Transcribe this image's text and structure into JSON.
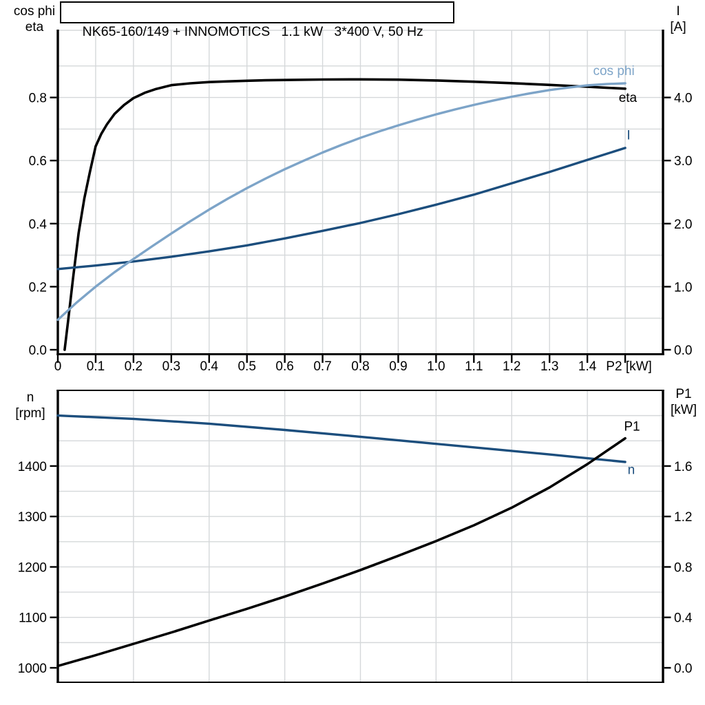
{
  "title_box": {
    "text": "NK65-160/149 + INNOMOTICS   1.1 kW   3*400 V, 50 Hz"
  },
  "axis_corner_labels": {
    "top_chart_left": [
      "cos phi",
      "eta"
    ],
    "top_chart_right": [
      "I",
      "[A]"
    ],
    "bottom_chart_left": [
      "n",
      "[rpm]"
    ],
    "bottom_chart_right": [
      "P1",
      "[kW]"
    ]
  },
  "colors": {
    "black": "#000000",
    "light_blue": "#7da4c8",
    "dark_blue": "#1c4e7d",
    "grid": "#d5d8da",
    "axis": "#000000",
    "background": "#ffffff"
  },
  "chart_data": [
    {
      "type": "line",
      "title": "NK65-160/149 + INNOMOTICS   1.1 kW   3*400 V, 50 Hz",
      "x_axis": {
        "label": "P2 [kW]",
        "min": 0,
        "max": 1.6,
        "grid_step": 0.1,
        "unit_label": "P2 [kW]",
        "unit_at": 1.51,
        "ticks": [
          [
            0,
            "0"
          ],
          [
            0.1,
            "0.1"
          ],
          [
            0.2,
            "0.2"
          ],
          [
            0.3,
            "0.3"
          ],
          [
            0.4,
            "0.4"
          ],
          [
            0.5,
            "0.5"
          ],
          [
            0.6,
            "0.6"
          ],
          [
            0.7,
            "0.7"
          ],
          [
            0.8,
            "0.8"
          ],
          [
            0.9,
            "0.9"
          ],
          [
            1.0,
            "1.0"
          ],
          [
            1.1,
            "1.1"
          ],
          [
            1.2,
            "1.2"
          ],
          [
            1.3,
            "1.3"
          ],
          [
            1.4,
            "1.4"
          ],
          [
            1.5,
            ""
          ]
        ],
        "grid": [
          0.1,
          0.2,
          0.3,
          0.4,
          0.5,
          0.6,
          0.7,
          0.8,
          0.9,
          1.0,
          1.1,
          1.2,
          1.3,
          1.4,
          1.5
        ]
      },
      "left_axis": {
        "label": "cos phi / eta",
        "min": 0,
        "max": 1.0,
        "ticks": [
          [
            0,
            "0.0"
          ],
          [
            0.2,
            "0.2"
          ],
          [
            0.4,
            "0.4"
          ],
          [
            0.6,
            "0.6"
          ],
          [
            0.8,
            "0.8"
          ]
        ],
        "grid": [
          0.1,
          0.2,
          0.3,
          0.4,
          0.5,
          0.6,
          0.7,
          0.8,
          0.9
        ]
      },
      "right_axis": {
        "label": "I [A]",
        "min": 0,
        "max": 5.0,
        "ticks": [
          [
            0,
            "0.0"
          ],
          [
            1,
            "1.0"
          ],
          [
            2,
            "2.0"
          ],
          [
            3,
            "3.0"
          ],
          [
            4,
            "4.0"
          ]
        ]
      },
      "series": [
        {
          "id": "eta-curve",
          "name": "eta",
          "axis": "left",
          "color_key": "black",
          "width": 3.6,
          "label": {
            "text": "eta",
            "x": 1.507,
            "v": 0.801
          },
          "points": [
            [
              0.018,
              0
            ],
            [
              0.028,
              0.1
            ],
            [
              0.04,
              0.225
            ],
            [
              0.055,
              0.37
            ],
            [
              0.07,
              0.48
            ],
            [
              0.085,
              0.565
            ],
            [
              0.1,
              0.645
            ],
            [
              0.115,
              0.685
            ],
            [
              0.13,
              0.715
            ],
            [
              0.15,
              0.748
            ],
            [
              0.175,
              0.776
            ],
            [
              0.2,
              0.798
            ],
            [
              0.23,
              0.815
            ],
            [
              0.26,
              0.827
            ],
            [
              0.3,
              0.839
            ],
            [
              0.35,
              0.845
            ],
            [
              0.4,
              0.849
            ],
            [
              0.45,
              0.851
            ],
            [
              0.5,
              0.853
            ],
            [
              0.55,
              0.8545
            ],
            [
              0.6,
              0.8555
            ],
            [
              0.7,
              0.857
            ],
            [
              0.8,
              0.8575
            ],
            [
              0.9,
              0.8565
            ],
            [
              1.0,
              0.854
            ],
            [
              1.1,
              0.85
            ],
            [
              1.2,
              0.8455
            ],
            [
              1.3,
              0.84
            ],
            [
              1.4,
              0.834
            ],
            [
              1.45,
              0.831
            ],
            [
              1.5,
              0.828
            ]
          ]
        },
        {
          "id": "current-curve",
          "name": "I",
          "axis": "right",
          "color_key": "dark_blue",
          "width": 3.4,
          "label": {
            "text": "I",
            "x": 1.509,
            "v": 3.41
          },
          "points": [
            [
              0,
              1.28
            ],
            [
              0.1,
              1.335
            ],
            [
              0.2,
              1.4
            ],
            [
              0.3,
              1.475
            ],
            [
              0.4,
              1.56
            ],
            [
              0.5,
              1.655
            ],
            [
              0.6,
              1.765
            ],
            [
              0.7,
              1.885
            ],
            [
              0.8,
              2.01
            ],
            [
              0.9,
              2.15
            ],
            [
              1.0,
              2.3
            ],
            [
              1.1,
              2.46
            ],
            [
              1.2,
              2.64
            ],
            [
              1.3,
              2.82
            ],
            [
              1.4,
              3.01
            ],
            [
              1.5,
              3.2
            ]
          ]
        },
        {
          "id": "cos-phi-curve",
          "name": "cos phi",
          "axis": "left",
          "color_key": "light_blue",
          "width": 3.4,
          "label": {
            "text": "cos phi",
            "x": 1.47,
            "v": 0.887
          },
          "points": [
            [
              0,
              0.095
            ],
            [
              0.05,
              0.15
            ],
            [
              0.1,
              0.2
            ],
            [
              0.15,
              0.246
            ],
            [
              0.1875,
              0.2775
            ],
            [
              0.25,
              0.3285
            ],
            [
              0.3,
              0.3685
            ],
            [
              0.35,
              0.4075
            ],
            [
              0.4,
              0.4445
            ],
            [
              0.45,
              0.4795
            ],
            [
              0.5,
              0.5125
            ],
            [
              0.55,
              0.5435
            ],
            [
              0.6,
              0.5725
            ],
            [
              0.65,
              0.5995
            ],
            [
              0.7,
              0.6255
            ],
            [
              0.75,
              0.6495
            ],
            [
              0.8,
              0.672
            ],
            [
              0.85,
              0.6925
            ],
            [
              0.9,
              0.7115
            ],
            [
              0.95,
              0.7295
            ],
            [
              1.0,
              0.7465
            ],
            [
              1.05,
              0.762
            ],
            [
              1.1,
              0.7765
            ],
            [
              1.15,
              0.79
            ],
            [
              1.2,
              0.8025
            ],
            [
              1.25,
              0.8135
            ],
            [
              1.3,
              0.8235
            ],
            [
              1.35,
              0.8315
            ],
            [
              1.4,
              0.8385
            ],
            [
              1.45,
              0.8425
            ],
            [
              1.5,
              0.845
            ]
          ]
        }
      ]
    },
    {
      "type": "line",
      "title": "Speed and input power vs output power",
      "x_axis": {
        "label": "P2 [kW]",
        "min": 0,
        "max": 1.6,
        "grid_step": 0.2,
        "ticks": [],
        "grid": [
          0.2,
          0.4,
          0.6,
          0.8,
          1.0,
          1.2,
          1.4
        ]
      },
      "left_axis": {
        "label": "n [rpm]",
        "min": 1000,
        "max": 1550,
        "ticks": [
          [
            1000,
            "1000"
          ],
          [
            1100,
            "1100"
          ],
          [
            1200,
            "1200"
          ],
          [
            1300,
            "1300"
          ],
          [
            1400,
            "1400"
          ]
        ],
        "grid": [
          1050,
          1100,
          1150,
          1200,
          1250,
          1300,
          1350,
          1400,
          1450,
          1500
        ]
      },
      "right_axis": {
        "label": "P1 [kW]",
        "min": 0,
        "max": 2.2,
        "ticks": [
          [
            0,
            "0.0"
          ],
          [
            0.4,
            "0.4"
          ],
          [
            0.8,
            "0.8"
          ],
          [
            1.2,
            "1.2"
          ],
          [
            1.6,
            "1.6"
          ]
        ]
      },
      "series": [
        {
          "id": "speed-curve",
          "name": "n",
          "axis": "left",
          "color_key": "dark_blue",
          "width": 3.4,
          "label": {
            "text": "n",
            "x": 1.516,
            "v": 1394
          },
          "points": [
            [
              0,
              1500
            ],
            [
              0.2,
              1493.5
            ],
            [
              0.4,
              1484
            ],
            [
              0.6,
              1471.5
            ],
            [
              0.8,
              1458
            ],
            [
              1.0,
              1444
            ],
            [
              1.2,
              1430
            ],
            [
              1.3,
              1423
            ],
            [
              1.4,
              1415.5
            ],
            [
              1.5,
              1408
            ]
          ]
        },
        {
          "id": "input-power-curve",
          "name": "P1",
          "axis": "right",
          "color_key": "black",
          "width": 3.6,
          "label": {
            "text": "P1",
            "x": 1.518,
            "v": 1.92
          },
          "points": [
            [
              0,
              0.015
            ],
            [
              0.1,
              0.1
            ],
            [
              0.2,
              0.19
            ],
            [
              0.3,
              0.28
            ],
            [
              0.4,
              0.375
            ],
            [
              0.5,
              0.468
            ],
            [
              0.6,
              0.565
            ],
            [
              0.7,
              0.668
            ],
            [
              0.8,
              0.775
            ],
            [
              0.9,
              0.888
            ],
            [
              1.0,
              1.005
            ],
            [
              1.1,
              1.13
            ],
            [
              1.2,
              1.27
            ],
            [
              1.3,
              1.43
            ],
            [
              1.4,
              1.615
            ],
            [
              1.5,
              1.82
            ]
          ]
        }
      ]
    }
  ]
}
